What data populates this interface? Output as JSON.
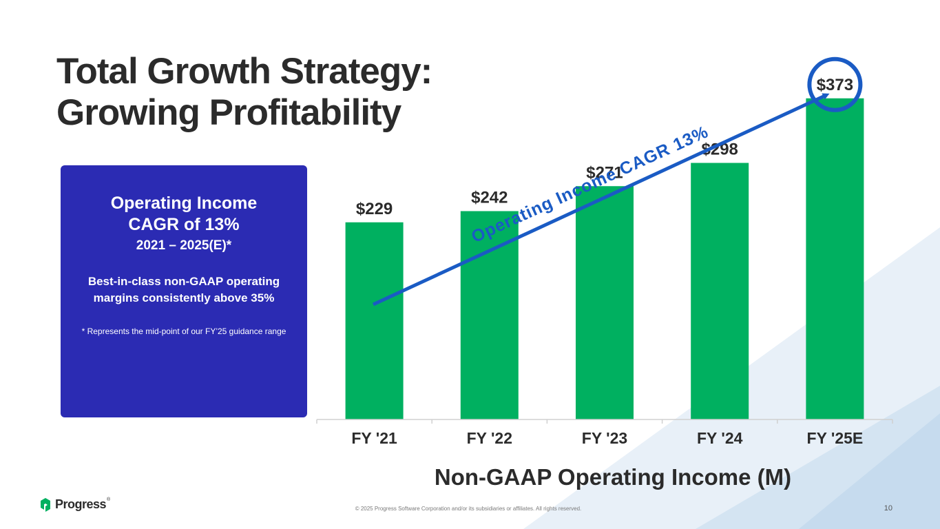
{
  "slide": {
    "title_line1": "Total Growth Strategy:",
    "title_line2": "Growing Profitability",
    "page_number": "10",
    "copyright": "© 2025 Progress Software Corporation and/or its subsidiaries or affiliates. All rights reserved.",
    "logo_text": "Progress",
    "logo_mark": "®"
  },
  "callout": {
    "heading": "Operating Income CAGR of 13%",
    "period": "2021 – 2025(E)*",
    "body": "Best-in-class non-GAAP operating margins consistently above 35%",
    "footnote": "* Represents the mid-point of our FY’25 guidance range"
  },
  "chart_data": {
    "type": "bar",
    "title": "Non-GAAP Operating Income (M)",
    "categories": [
      "FY '21",
      "FY '22",
      "FY '23",
      "FY '24",
      "FY '25E"
    ],
    "values": [
      229,
      242,
      271,
      298,
      373
    ],
    "value_labels": [
      "$229",
      "$242",
      "$271",
      "$298",
      "$373"
    ],
    "ylim": [
      0,
      400
    ],
    "grid": false,
    "legend": "none",
    "bar_color": "#00b060",
    "annotation": "Operating Income CAGR 13%",
    "highlight_category": "FY '25E",
    "annotation_color": "#1a5bc4"
  }
}
